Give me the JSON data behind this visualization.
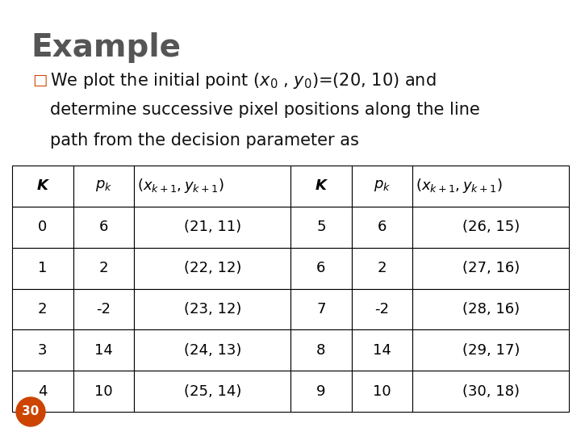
{
  "title": "Example",
  "title_color": "#555555",
  "bullet_color": "#CC4400",
  "intro_line2": "determine successive pixel positions along the line",
  "intro_line3": "path from the decision parameter as",
  "table_data": [
    [
      "0",
      "6",
      "(21, 11)",
      "5",
      "6",
      "(26, 15)"
    ],
    [
      "1",
      "2",
      "(22, 12)",
      "6",
      "2",
      "(27, 16)"
    ],
    [
      "2",
      "-2",
      "(23, 12)",
      "7",
      "-2",
      "(28, 16)"
    ],
    [
      "3",
      "14",
      "(24, 13)",
      "8",
      "14",
      "(29, 17)"
    ],
    [
      "4",
      "10",
      "(25, 14)",
      "9",
      "10",
      "(30, 18)"
    ]
  ],
  "bg_color": "#e8e8e8",
  "slide_bg": "#ffffff",
  "page_num": "30",
  "page_num_bg": "#CC4400",
  "table_border_color": "#000000",
  "title_fontsize": 28,
  "text_fontsize": 15,
  "table_header_fontsize": 13,
  "table_data_fontsize": 13
}
